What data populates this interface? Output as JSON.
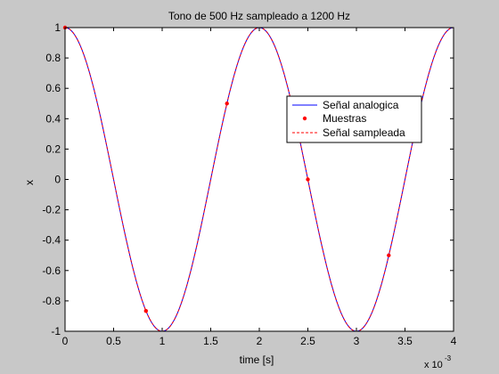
{
  "window": {
    "background": "#c8c8c8"
  },
  "chart_data": {
    "type": "line",
    "title": "Tono de 500 Hz sampleado a 1200 Hz",
    "xlabel": "time [s]",
    "ylabel": "x",
    "x_multiplier_label": "x 10",
    "x_multiplier_exponent": "-3",
    "xlim": [
      0,
      4
    ],
    "ylim": [
      -1,
      1
    ],
    "x_ticks": [
      0,
      0.5,
      1,
      1.5,
      2,
      2.5,
      3,
      3.5,
      4
    ],
    "x_tick_labels": [
      "0",
      "0.5",
      "1",
      "1.5",
      "2",
      "2.5",
      "3",
      "3.5",
      "4"
    ],
    "y_ticks": [
      -1,
      -0.8,
      -0.6,
      -0.4,
      -0.2,
      0,
      0.2,
      0.4,
      0.6,
      0.8,
      1
    ],
    "y_tick_labels": [
      "-1",
      "-0.8",
      "-0.6",
      "-0.4",
      "-0.2",
      "0",
      "0.2",
      "0.4",
      "0.6",
      "0.8",
      "1"
    ],
    "grid": false,
    "legend_position": "top-right",
    "series": [
      {
        "name": "Señal analogica",
        "style": "solid",
        "color": "#0000ff",
        "function": "cos(2*pi*500*t)",
        "x": [
          0,
          0.1,
          0.2,
          0.3,
          0.4,
          0.5,
          0.6,
          0.7,
          0.8,
          0.9,
          1.0,
          1.1,
          1.2,
          1.3,
          1.4,
          1.5,
          1.6,
          1.7,
          1.8,
          1.9,
          2.0,
          2.1,
          2.2,
          2.3,
          2.4,
          2.5,
          2.6,
          2.7,
          2.8,
          2.9,
          3.0,
          3.1,
          3.2,
          3.3,
          3.4,
          3.5,
          3.6,
          3.7,
          3.8,
          3.9,
          4.0
        ],
        "y": [
          1,
          0.951,
          0.809,
          0.588,
          0.309,
          0,
          -0.309,
          -0.588,
          -0.809,
          -0.951,
          -1,
          -0.951,
          -0.809,
          -0.588,
          -0.309,
          0,
          0.309,
          0.588,
          0.809,
          0.951,
          1,
          0.951,
          0.809,
          0.588,
          0.309,
          0,
          -0.309,
          -0.588,
          -0.809,
          -0.951,
          -1,
          -0.951,
          -0.809,
          -0.588,
          -0.309,
          0,
          0.309,
          0.588,
          0.809,
          0.951,
          1
        ]
      },
      {
        "name": "Muestras",
        "style": "markers",
        "color": "#ff0000",
        "x": [
          0,
          0.833,
          1.667,
          2.5,
          3.333
        ],
        "y": [
          1,
          -0.866,
          0.5,
          0,
          -0.5
        ]
      },
      {
        "name": "Señal sampleada",
        "style": "dashed",
        "color": "#ff0000",
        "function": "cos(2*pi*500*t)",
        "x": [
          0,
          0.1,
          0.2,
          0.3,
          0.4,
          0.5,
          0.6,
          0.7,
          0.8,
          0.9,
          1.0,
          1.1,
          1.2,
          1.3,
          1.4,
          1.5,
          1.6,
          1.7,
          1.8,
          1.9,
          2.0,
          2.1,
          2.2,
          2.3,
          2.4,
          2.5,
          2.6,
          2.7,
          2.8,
          2.9,
          3.0,
          3.1,
          3.2,
          3.3,
          3.4,
          3.5,
          3.6,
          3.7,
          3.8,
          3.9,
          4.0
        ],
        "y": [
          1,
          0.951,
          0.809,
          0.588,
          0.309,
          0,
          -0.309,
          -0.588,
          -0.809,
          -0.951,
          -1,
          -0.951,
          -0.809,
          -0.588,
          -0.309,
          0,
          0.309,
          0.588,
          0.809,
          0.951,
          1,
          0.951,
          0.809,
          0.588,
          0.309,
          0,
          -0.309,
          -0.588,
          -0.809,
          -0.951,
          -1,
          -0.951,
          -0.809,
          -0.588,
          -0.309,
          0,
          0.309,
          0.588,
          0.809,
          0.951,
          1
        ]
      }
    ]
  }
}
